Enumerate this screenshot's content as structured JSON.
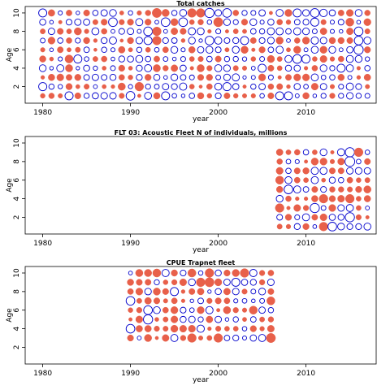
{
  "colors": {
    "positive": "#0000cc",
    "negative": "#e8604a",
    "frame": "#000000"
  },
  "chart_data": [
    {
      "type": "scatter",
      "subtype": "bubble-residuals",
      "title": "Total catches",
      "xlabel": "year",
      "ylabel": "Age",
      "xlim": [
        1978,
        2018
      ],
      "ylim": [
        0.2,
        10.7
      ],
      "xticks": [
        1980,
        1990,
        2000,
        2010
      ],
      "yticks": [
        2,
        4,
        6,
        8,
        10
      ],
      "years": [
        1980,
        2017
      ],
      "ages": [
        1,
        10
      ],
      "seed": 11,
      "points": [
        {
          "x": 1993,
          "y": 10,
          "v": -0.9
        },
        {
          "x": 1997,
          "y": 10,
          "v": -0.8
        },
        {
          "x": 1998,
          "y": 10,
          "v": -0.8
        },
        {
          "x": 1999,
          "y": 10,
          "v": 0.9
        },
        {
          "x": 2001,
          "y": 10,
          "v": 0.8
        },
        {
          "x": 2009,
          "y": 10,
          "v": 0.7
        },
        {
          "x": 2011,
          "y": 10,
          "v": 0.8
        },
        {
          "x": 2012,
          "y": 10,
          "v": 0.6
        },
        {
          "x": 1980,
          "y": 10,
          "v": 0.7
        },
        {
          "x": 1996,
          "y": 9,
          "v": 0.8
        },
        {
          "x": 2000,
          "y": 9,
          "v": -0.9
        },
        {
          "x": 1994,
          "y": 9,
          "v": 0.8
        },
        {
          "x": 2015,
          "y": 9,
          "v": -0.7
        },
        {
          "x": 1988,
          "y": 9,
          "v": 0.8
        },
        {
          "x": 2011,
          "y": 9,
          "v": 0.7
        },
        {
          "x": 1993,
          "y": 8,
          "v": -0.8
        },
        {
          "x": 1992,
          "y": 8,
          "v": 0.8
        },
        {
          "x": 2016,
          "y": 8,
          "v": 0.8
        },
        {
          "x": 1993,
          "y": 7,
          "v": -0.8
        },
        {
          "x": 1992,
          "y": 7,
          "v": 0.7
        },
        {
          "x": 1999,
          "y": 7,
          "v": 0.8
        },
        {
          "x": 2016,
          "y": 7,
          "v": 0.8
        },
        {
          "x": 2003,
          "y": 7,
          "v": 0.7
        },
        {
          "x": 2016,
          "y": 6,
          "v": 0.9
        },
        {
          "x": 2009,
          "y": 5,
          "v": 0.8
        },
        {
          "x": 2010,
          "y": 5,
          "v": 0.7
        },
        {
          "x": 1983,
          "y": 5,
          "v": -0.7
        },
        {
          "x": 1984,
          "y": 5,
          "v": 0.7
        },
        {
          "x": 2005,
          "y": 4,
          "v": 0.7
        },
        {
          "x": 2014,
          "y": 4,
          "v": 0.7
        },
        {
          "x": 1983,
          "y": 1,
          "v": 0.7
        },
        {
          "x": 1990,
          "y": 1,
          "v": 0.8
        },
        {
          "x": 1994,
          "y": 1,
          "v": 0.7
        },
        {
          "x": 2007,
          "y": 1,
          "v": 0.7
        },
        {
          "x": 2008,
          "y": 1,
          "v": 0.7
        },
        {
          "x": 1980,
          "y": 2,
          "v": 0.7
        },
        {
          "x": 1991,
          "y": 2,
          "v": -0.8
        },
        {
          "x": 2001,
          "y": 2,
          "v": 0.7
        }
      ]
    },
    {
      "type": "scatter",
      "subtype": "bubble-residuals",
      "title": "FLT 03: Acoustic Fleet   N of individuals, millions",
      "xlabel": "year",
      "ylabel": "Age",
      "xlim": [
        1978,
        2018
      ],
      "ylim": [
        0.2,
        10.7
      ],
      "xticks": [
        1980,
        1990,
        2000,
        2010
      ],
      "yticks": [
        2,
        4,
        6,
        8,
        10
      ],
      "years": [
        2007,
        2017
      ],
      "ages": [
        1,
        9
      ],
      "seed": 23,
      "points": [
        {
          "x": 2015,
          "y": 9,
          "v": 0.9
        },
        {
          "x": 2015,
          "y": 8,
          "v": 1.0
        },
        {
          "x": 2016,
          "y": 9,
          "v": -0.8
        },
        {
          "x": 2008,
          "y": 5,
          "v": 0.8
        },
        {
          "x": 2011,
          "y": 3,
          "v": 0.9
        },
        {
          "x": 2013,
          "y": 1,
          "v": 0.8
        },
        {
          "x": 2015,
          "y": 2,
          "v": 0.9
        },
        {
          "x": 2007,
          "y": 3,
          "v": -0.8
        },
        {
          "x": 2012,
          "y": 4,
          "v": -0.8
        },
        {
          "x": 2015,
          "y": 4,
          "v": -0.8
        },
        {
          "x": 2012,
          "y": 1,
          "v": -0.8
        },
        {
          "x": 2007,
          "y": 6,
          "v": -0.7
        }
      ]
    },
    {
      "type": "scatter",
      "subtype": "bubble-residuals",
      "title": "CPUE Trapnet fleet",
      "xlabel": "year",
      "ylabel": "Age",
      "xlim": [
        1978,
        2018
      ],
      "ylim": [
        0.2,
        10.7
      ],
      "xticks": [
        1980,
        1990,
        2000,
        2010
      ],
      "yticks": [
        2,
        4,
        6,
        8,
        10
      ],
      "years": [
        1990,
        2006
      ],
      "ages": [
        3,
        10
      ],
      "seed": 37,
      "points": [
        {
          "x": 1992,
          "y": 5,
          "v": 0.9
        },
        {
          "x": 1999,
          "y": 10,
          "v": -0.8
        },
        {
          "x": 1998,
          "y": 9,
          "v": -0.8
        },
        {
          "x": 1999,
          "y": 9,
          "v": -0.9
        },
        {
          "x": 2003,
          "y": 10,
          "v": -0.8
        },
        {
          "x": 2006,
          "y": 3,
          "v": -0.9
        },
        {
          "x": 1997,
          "y": 3,
          "v": -0.8
        },
        {
          "x": 2000,
          "y": 3,
          "v": -0.8
        },
        {
          "x": 1990,
          "y": 7,
          "v": 0.8
        },
        {
          "x": 1992,
          "y": 6,
          "v": 0.8
        },
        {
          "x": 1990,
          "y": 4,
          "v": 0.8
        },
        {
          "x": 1993,
          "y": 10,
          "v": -0.7
        },
        {
          "x": 2004,
          "y": 6,
          "v": -0.7
        },
        {
          "x": 2006,
          "y": 7,
          "v": -0.7
        },
        {
          "x": 2002,
          "y": 9,
          "v": 0.7
        },
        {
          "x": 1997,
          "y": 10,
          "v": -0.7
        },
        {
          "x": 1995,
          "y": 8,
          "v": 0.7
        }
      ]
    }
  ]
}
